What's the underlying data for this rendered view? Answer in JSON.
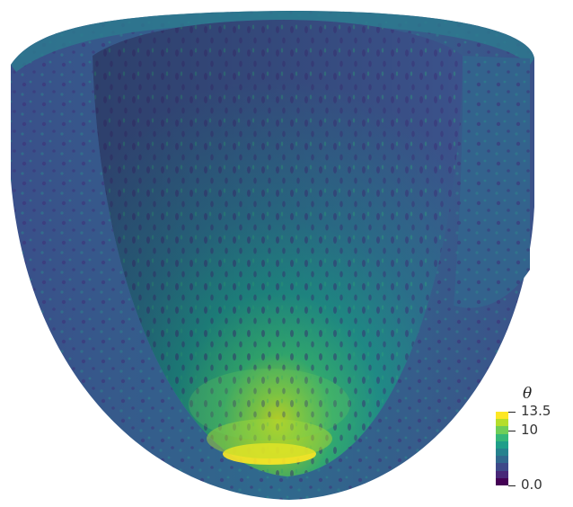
{
  "visualization": {
    "description_icon": "heart-ventricle-cutaway-render",
    "colormap": [
      "#fde725",
      "#b5de2b",
      "#6ece58",
      "#35b779",
      "#1f9e89",
      "#26828e",
      "#31688e",
      "#3e4989",
      "#482878",
      "#440154"
    ]
  },
  "colorbar": {
    "title": "θ",
    "ticks": [
      {
        "label": "13.5",
        "value": 13.5
      },
      {
        "label": "10",
        "value": 10
      },
      {
        "label": "0.0",
        "value": 0.0
      }
    ],
    "range": [
      0.0,
      13.5
    ]
  }
}
